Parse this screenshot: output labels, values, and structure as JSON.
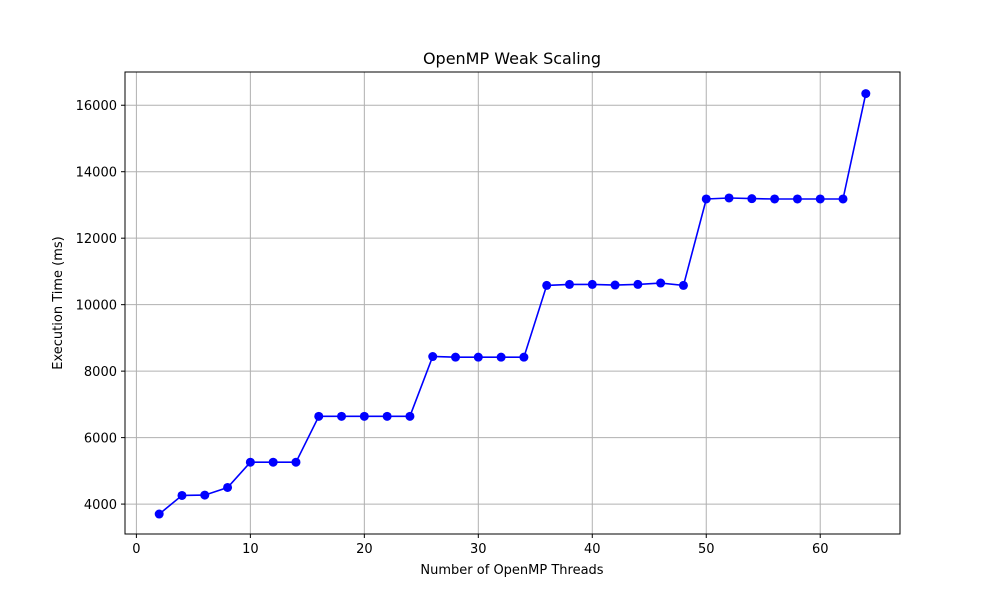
{
  "chart_data": {
    "type": "line",
    "title": "OpenMP Weak Scaling",
    "xlabel": "Number of OpenMP Threads",
    "ylabel": "Execution Time (ms)",
    "xlim": [
      -1,
      67
    ],
    "ylim": [
      3100,
      17000
    ],
    "xticks": [
      0,
      10,
      20,
      30,
      40,
      50,
      60
    ],
    "yticks": [
      4000,
      6000,
      8000,
      10000,
      12000,
      14000,
      16000
    ],
    "grid": true,
    "series": [
      {
        "color": "#0000ff",
        "marker": "circle",
        "x": [
          2,
          4,
          6,
          8,
          10,
          12,
          14,
          16,
          18,
          20,
          22,
          24,
          26,
          28,
          30,
          32,
          34,
          36,
          38,
          40,
          42,
          44,
          46,
          48,
          50,
          52,
          54,
          56,
          58,
          60,
          62,
          64
        ],
        "y": [
          3700,
          4260,
          4270,
          4500,
          5260,
          5260,
          5260,
          6640,
          6640,
          6640,
          6640,
          6640,
          8440,
          8420,
          8420,
          8420,
          8420,
          10580,
          10610,
          10610,
          10590,
          10610,
          10650,
          10580,
          13180,
          13210,
          13190,
          13180,
          13180,
          13180,
          13180,
          16350
        ]
      }
    ]
  }
}
